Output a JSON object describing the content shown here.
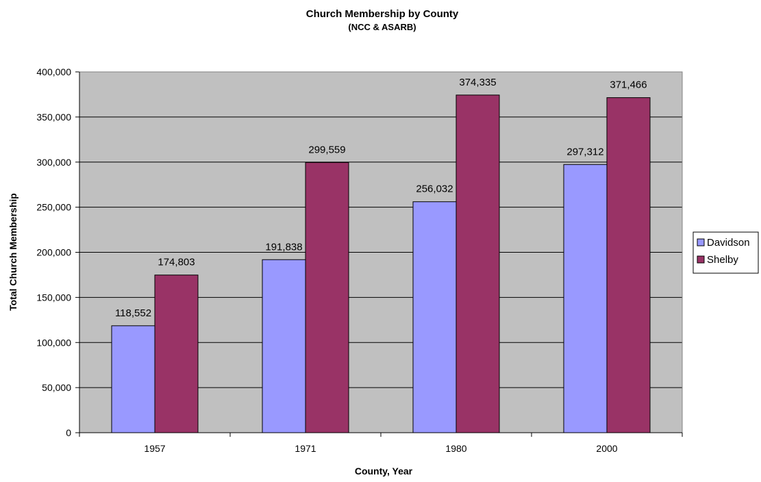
{
  "chart_data": {
    "type": "bar",
    "title": "Church Membership by County",
    "subtitle": "(NCC & ASARB)",
    "xlabel": "County, Year",
    "ylabel": "Total Church Membership",
    "categories": [
      "1957",
      "1971",
      "1980",
      "2000"
    ],
    "series": [
      {
        "name": "Davidson",
        "values": [
          118552,
          191838,
          256032,
          297312
        ],
        "labels": [
          "118,552",
          "191,838",
          "256,032",
          "297,312"
        ],
        "color": "#9999ff"
      },
      {
        "name": "Shelby",
        "values": [
          174803,
          299559,
          374335,
          371466
        ],
        "labels": [
          "174,803",
          "299,559",
          "374,335",
          "371,466"
        ],
        "color": "#993366"
      }
    ],
    "ylim": [
      0,
      400000
    ],
    "yticks": [
      0,
      50000,
      100000,
      150000,
      200000,
      250000,
      300000,
      350000,
      400000
    ],
    "ytick_labels": [
      "0",
      "50,000",
      "100,000",
      "150,000",
      "200,000",
      "250,000",
      "300,000",
      "350,000",
      "400,000"
    ],
    "grid": true,
    "plot_background": "#c0c0c0",
    "legend_position": "right"
  }
}
